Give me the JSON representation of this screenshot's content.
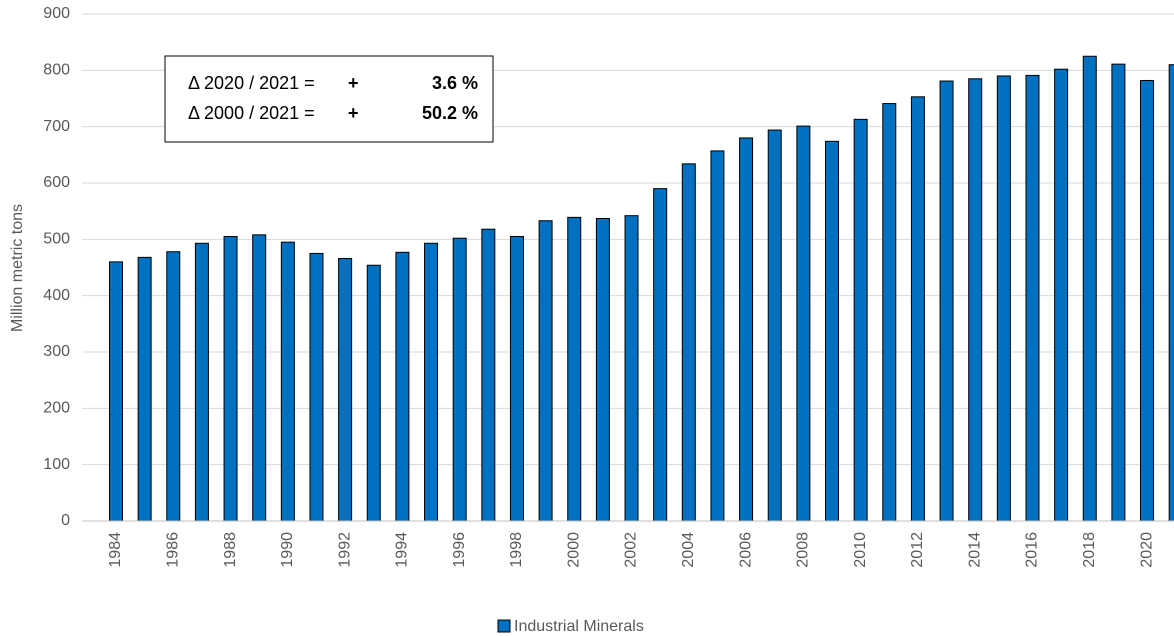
{
  "chart_data": {
    "type": "bar",
    "y_label": "Million metric tons",
    "categories": [
      "1984",
      null,
      "1986",
      null,
      "1988",
      null,
      "1990",
      null,
      "1992",
      null,
      "1994",
      null,
      "1996",
      null,
      "1998",
      null,
      "2000",
      null,
      "2002",
      null,
      "2004",
      null,
      "2006",
      null,
      "2008",
      null,
      "2010",
      null,
      "2012",
      null,
      "2014",
      null,
      "2016",
      null,
      "2018",
      null,
      "2020",
      null
    ],
    "series": [
      {
        "name": "Industrial Minerals",
        "color": "#0070c0",
        "values": [
          460,
          468,
          478,
          493,
          505,
          508,
          495,
          475,
          466,
          454,
          477,
          493,
          502,
          518,
          505,
          533,
          539,
          537,
          542,
          590,
          634,
          657,
          680,
          694,
          701,
          674,
          713,
          741,
          753,
          781,
          785,
          790,
          791,
          802,
          825,
          811,
          782,
          810
        ]
      }
    ],
    "ylim": [
      0,
      900
    ],
    "yticks": [
      0,
      100,
      200,
      300,
      400,
      500,
      600,
      700,
      800,
      900
    ],
    "grid": true,
    "annotations": [
      {
        "label": "Δ 2020 / 2021 =",
        "sign": "+",
        "value": "3.6 %"
      },
      {
        "label": "Δ 2000 / 2021 =",
        "sign": "+",
        "value": "50.2 %"
      }
    ],
    "legend": "bottom"
  }
}
